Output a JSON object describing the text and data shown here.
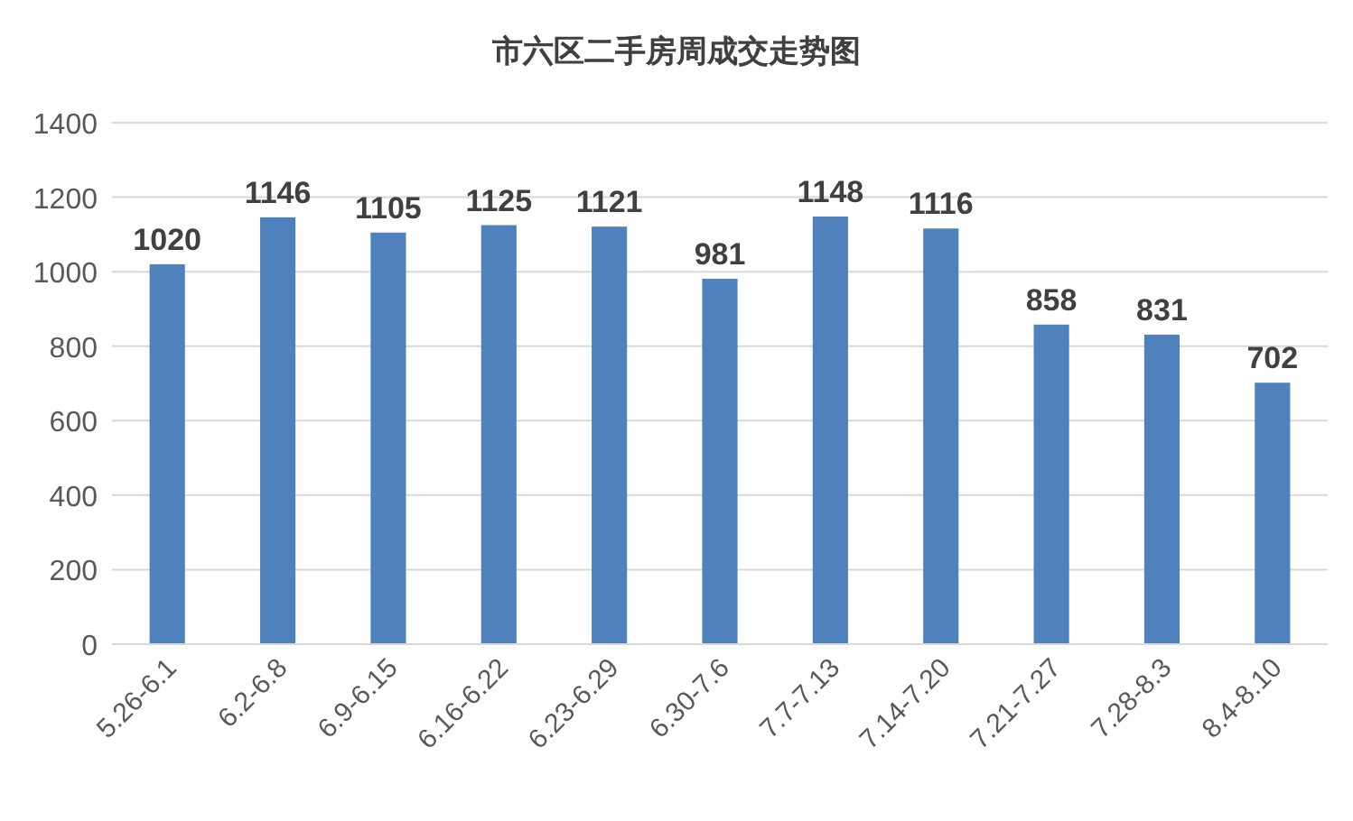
{
  "chart_data": {
    "type": "bar",
    "title": "市六区二手房周成交走势图",
    "categories": [
      "5.26-6.1",
      "6.2-6.8",
      "6.9-6.15",
      "6.16-6.22",
      "6.23-6.29",
      "6.30-7.6",
      "7.7-7.13",
      "7.14-7.20",
      "7.21-7.27",
      "7.28-8.3",
      "8.4-8.10"
    ],
    "values": [
      1020,
      1146,
      1105,
      1125,
      1121,
      981,
      1148,
      1116,
      858,
      831,
      702
    ],
    "color": "#4f81bd",
    "ylim": [
      0,
      1400
    ],
    "yticks": [
      0,
      200,
      400,
      600,
      800,
      1000,
      1200,
      1400
    ],
    "grid": "y",
    "data_labels": true
  }
}
